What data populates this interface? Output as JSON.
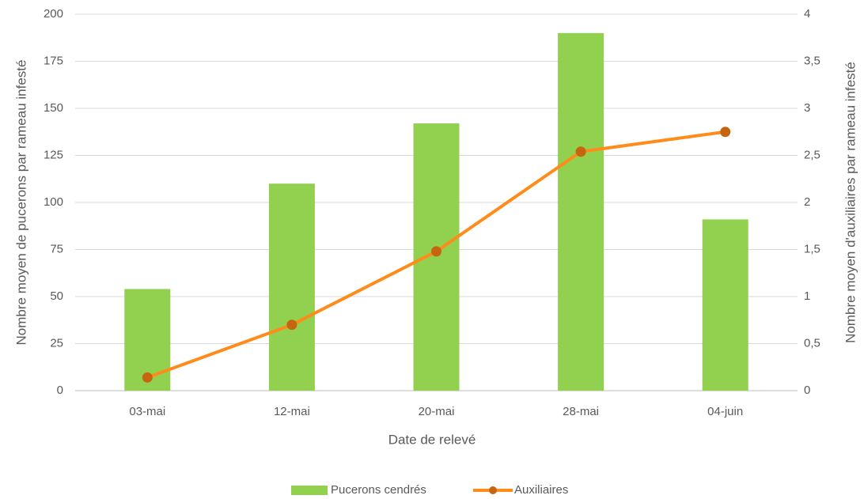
{
  "chart_data": {
    "type": "bar",
    "xlabel": "Date de relevé",
    "ylabel": "Nombre moyen de pucerons par rameau infesté",
    "y2label": "Nombre moyen d'auxiliaires par rameau infesté",
    "categories": [
      "03-mai",
      "12-mai",
      "20-mai",
      "28-mai",
      "04-juin"
    ],
    "series": [
      {
        "name": "Pucerons cendrés",
        "type": "bar",
        "color": "#92d050",
        "values": [
          54,
          110,
          142,
          190,
          91
        ]
      },
      {
        "name": "Auxiliaires",
        "type": "line",
        "axis": "y2",
        "color": "#ff8c1a",
        "marker_color": "#c5650f",
        "values": [
          0.14,
          0.7,
          1.48,
          2.54,
          2.75
        ]
      }
    ],
    "ylim": [
      0,
      200
    ],
    "yticks": [
      0,
      25,
      50,
      75,
      100,
      125,
      150,
      175,
      200
    ],
    "y2lim": [
      0,
      4
    ],
    "y2ticks": [
      0,
      {
        "value": 0.5,
        "label": "0,5"
      },
      1,
      {
        "value": 1.5,
        "label": "1,5"
      },
      2,
      {
        "value": 2.5,
        "label": "2,5"
      },
      3,
      {
        "value": 3.5,
        "label": "3,5"
      },
      4
    ],
    "grid": true,
    "legend": "bottom"
  }
}
